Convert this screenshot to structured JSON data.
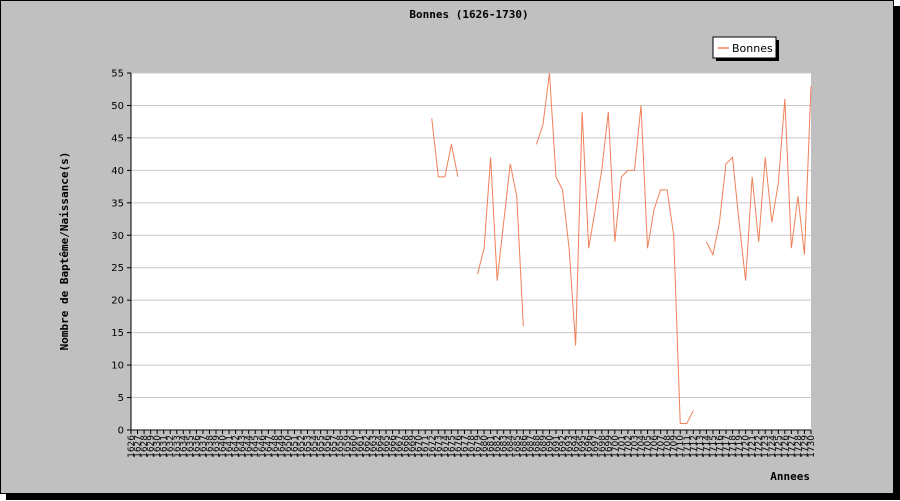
{
  "chart_data": {
    "type": "line",
    "title": "Bonnes (1626-1730)",
    "xlabel": "Annees",
    "ylabel": "Nombre de Baptême/Naissance(s)",
    "ylim": [
      0,
      55
    ],
    "yticks": [
      0,
      5,
      10,
      15,
      20,
      25,
      30,
      35,
      40,
      45,
      50,
      55
    ],
    "grid": true,
    "legend_position": "top-right",
    "categories": [
      1626,
      1627,
      1628,
      1629,
      1630,
      1631,
      1632,
      1633,
      1634,
      1635,
      1636,
      1637,
      1638,
      1639,
      1640,
      1641,
      1642,
      1643,
      1644,
      1645,
      1646,
      1647,
      1648,
      1649,
      1650,
      1651,
      1652,
      1653,
      1654,
      1655,
      1656,
      1657,
      1658,
      1659,
      1660,
      1661,
      1662,
      1663,
      1664,
      1665,
      1666,
      1667,
      1668,
      1669,
      1670,
      1671,
      1672,
      1673,
      1674,
      1675,
      1676,
      1677,
      1678,
      1679,
      1680,
      1681,
      1682,
      1683,
      1684,
      1685,
      1686,
      1687,
      1688,
      1689,
      1690,
      1691,
      1692,
      1693,
      1694,
      1695,
      1696,
      1697,
      1698,
      1699,
      1700,
      1701,
      1702,
      1703,
      1704,
      1705,
      1706,
      1707,
      1708,
      1709,
      1710,
      1711,
      1712,
      1713,
      1714,
      1715,
      1716,
      1717,
      1718,
      1719,
      1720,
      1721,
      1722,
      1723,
      1724,
      1725,
      1726,
      1727,
      1728,
      1729,
      1730
    ],
    "series": [
      {
        "name": "Bonnes",
        "color": "#f0805a",
        "values": [
          null,
          null,
          null,
          null,
          null,
          null,
          null,
          null,
          null,
          null,
          null,
          null,
          null,
          null,
          null,
          null,
          null,
          null,
          null,
          null,
          null,
          null,
          null,
          null,
          null,
          null,
          null,
          null,
          null,
          null,
          null,
          null,
          null,
          null,
          null,
          null,
          null,
          null,
          null,
          null,
          null,
          null,
          null,
          null,
          null,
          null,
          48,
          39,
          39,
          44,
          39,
          null,
          null,
          24,
          28,
          42,
          23,
          32,
          41,
          36,
          16,
          null,
          44,
          47,
          55,
          39,
          37,
          28,
          13,
          49,
          28,
          34,
          40,
          49,
          29,
          39,
          40,
          40,
          50,
          28,
          34,
          37,
          37,
          30,
          1,
          1,
          3,
          null,
          29,
          27,
          32,
          41,
          42,
          32,
          23,
          39,
          29,
          42,
          32,
          38,
          51,
          28,
          36,
          27,
          53
        ]
      }
    ]
  }
}
